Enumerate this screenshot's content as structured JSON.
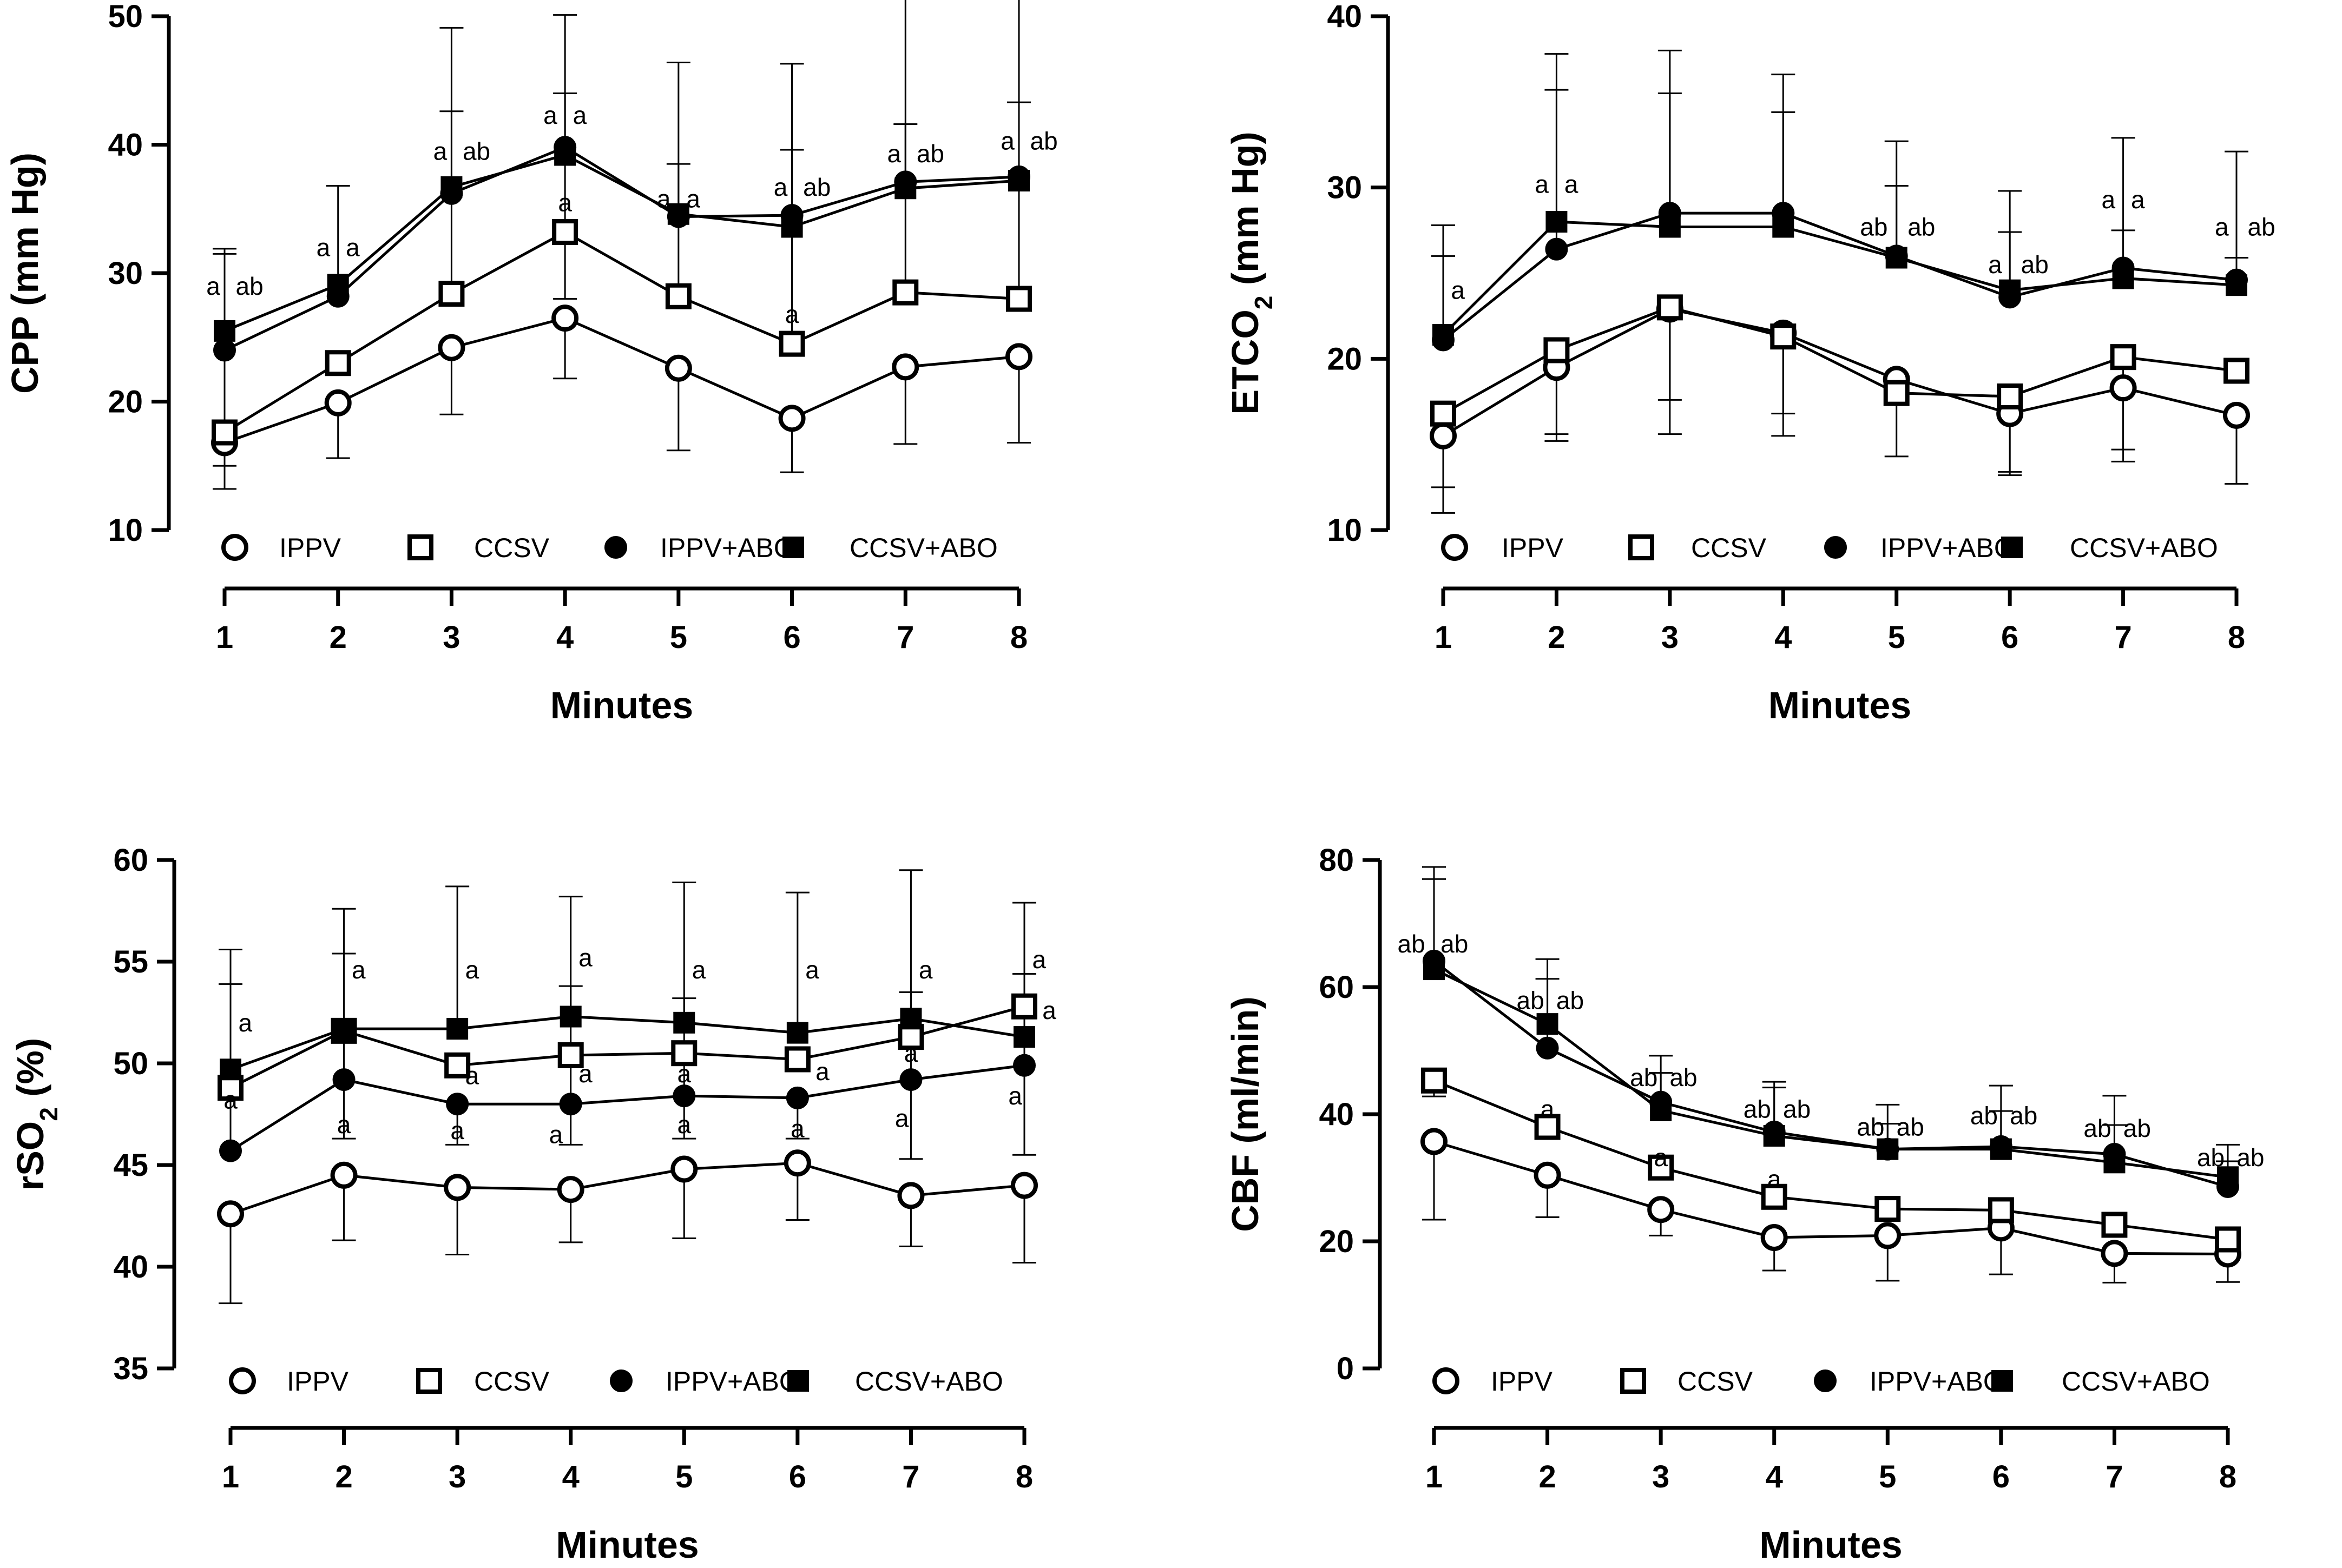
{
  "figure": {
    "colors": {
      "ink": "#000000",
      "background": "#ffffff"
    },
    "legend_symbols": {
      "IPPV": "open-circle-icon",
      "CCSV": "open-square-icon",
      "IPPV+ABO": "filled-circle-icon",
      "CCSV+ABO": "filled-square-icon"
    }
  },
  "chart_data": [
    {
      "id": "cpp",
      "type": "line",
      "ylabel": "CPP (mm Hg)",
      "xlabel": "Minutes",
      "ylim": [
        10,
        50
      ],
      "yticks": [
        10,
        20,
        30,
        40,
        50
      ],
      "x": [
        1,
        2,
        3,
        4,
        5,
        6,
        7,
        8
      ],
      "series": [
        {
          "name": "IPPV",
          "marker": "open-circle",
          "values": [
            16.8,
            19.9,
            24.2,
            26.5,
            22.6,
            18.7,
            22.7,
            23.5
          ],
          "err_low": [
            13.2,
            15.6,
            19.0,
            21.8,
            16.2,
            14.5,
            16.7,
            16.8
          ],
          "err_high": [
            null,
            null,
            null,
            null,
            null,
            null,
            null,
            null
          ]
        },
        {
          "name": "CCSV",
          "marker": "open-square",
          "values": [
            17.6,
            23.0,
            28.4,
            33.2,
            28.2,
            24.5,
            28.5,
            28.0
          ],
          "err_low": [
            15.0,
            null,
            null,
            28.0,
            null,
            null,
            null,
            null
          ],
          "err_high": [
            31.5,
            null,
            42.6,
            44.0,
            38.5,
            39.6,
            41.6,
            43.3
          ]
        },
        {
          "name": "IPPV+ABO",
          "marker": "filled-circle",
          "values": [
            24.0,
            28.2,
            36.2,
            39.8,
            34.4,
            34.5,
            37.1,
            37.5
          ],
          "err_low": [
            null,
            null,
            null,
            null,
            null,
            null,
            null,
            null
          ],
          "err_high": [
            31.9,
            36.8,
            49.1,
            50.1,
            46.4,
            46.3,
            52.9,
            51.7
          ]
        },
        {
          "name": "CCSV+ABO",
          "marker": "filled-square",
          "values": [
            25.5,
            29.1,
            36.7,
            39.2,
            34.6,
            33.6,
            36.6,
            37.2
          ],
          "err_low": [
            null,
            null,
            null,
            null,
            null,
            null,
            null,
            null
          ],
          "err_high": [
            null,
            null,
            null,
            null,
            null,
            null,
            null,
            null
          ]
        }
      ],
      "annotations": [
        {
          "x": 1,
          "y": 29.0,
          "text": "a",
          "dx": -0.1
        },
        {
          "x": 1,
          "y": 29.0,
          "text": "ab",
          "dx": 0.22
        },
        {
          "x": 2,
          "y": 32.0,
          "text": "a",
          "dx": -0.13
        },
        {
          "x": 2,
          "y": 32.0,
          "text": "a",
          "dx": 0.13
        },
        {
          "x": 3,
          "y": 39.5,
          "text": "a",
          "dx": -0.1
        },
        {
          "x": 3,
          "y": 39.5,
          "text": "ab",
          "dx": 0.22
        },
        {
          "x": 4,
          "y": 42.3,
          "text": "a",
          "dx": -0.13
        },
        {
          "x": 4,
          "y": 42.3,
          "text": "a",
          "dx": 0.13
        },
        {
          "x": 4,
          "y": 35.5,
          "text": "a",
          "dx": 0
        },
        {
          "x": 5,
          "y": 35.8,
          "text": "a",
          "dx": -0.13
        },
        {
          "x": 5,
          "y": 35.8,
          "text": "a",
          "dx": 0.13
        },
        {
          "x": 6,
          "y": 36.7,
          "text": "a",
          "dx": -0.1
        },
        {
          "x": 6,
          "y": 36.7,
          "text": "ab",
          "dx": 0.22
        },
        {
          "x": 6,
          "y": 26.8,
          "text": "a",
          "dx": 0
        },
        {
          "x": 7,
          "y": 39.3,
          "text": "a",
          "dx": -0.1
        },
        {
          "x": 7,
          "y": 39.3,
          "text": "ab",
          "dx": 0.22
        },
        {
          "x": 8,
          "y": 40.3,
          "text": "a",
          "dx": -0.1
        },
        {
          "x": 8,
          "y": 40.3,
          "text": "ab",
          "dx": 0.22
        }
      ]
    },
    {
      "id": "etco2",
      "type": "line",
      "ylabel": "ETCO",
      "ylabel_sub": "2",
      "ylabel_suffix": " (mm Hg)",
      "xlabel": "Minutes",
      "ylim": [
        10,
        40
      ],
      "yticks": [
        10,
        20,
        30,
        40
      ],
      "x": [
        1,
        2,
        3,
        4,
        5,
        6,
        7,
        8
      ],
      "series": [
        {
          "name": "IPPV",
          "marker": "open-circle",
          "values": [
            15.5,
            19.5,
            22.9,
            21.5,
            18.8,
            16.8,
            18.3,
            16.7
          ],
          "err_low": [
            11.0,
            15.2,
            15.6,
            15.5,
            14.3,
            13.4,
            14.7,
            12.7
          ],
          "err_high": [
            null,
            null,
            null,
            null,
            null,
            null,
            null,
            null
          ]
        },
        {
          "name": "CCSV",
          "marker": "open-square",
          "values": [
            16.8,
            20.5,
            23.0,
            21.3,
            18.0,
            17.8,
            20.1,
            19.3
          ],
          "err_low": [
            12.5,
            15.6,
            17.6,
            16.8,
            null,
            13.2,
            14.0,
            null
          ],
          "err_high": [
            null,
            null,
            null,
            null,
            null,
            null,
            null,
            null
          ]
        },
        {
          "name": "IPPV+ABO",
          "marker": "filled-circle",
          "values": [
            21.1,
            26.4,
            28.5,
            28.5,
            26.0,
            23.6,
            25.3,
            24.6
          ],
          "err_low": [
            null,
            null,
            null,
            null,
            null,
            null,
            null,
            null
          ],
          "err_high": [
            27.8,
            37.8,
            38.0,
            36.6,
            32.7,
            29.8,
            32.9,
            32.1
          ]
        },
        {
          "name": "CCSV+ABO",
          "marker": "filled-square",
          "values": [
            21.4,
            28.0,
            27.7,
            27.7,
            25.9,
            24.0,
            24.7,
            24.3
          ],
          "err_low": [
            null,
            null,
            null,
            null,
            null,
            null,
            null,
            null
          ],
          "err_high": [
            26.0,
            35.7,
            35.5,
            34.4,
            30.1,
            27.4,
            27.5,
            25.9
          ]
        }
      ],
      "annotations": [
        {
          "x": 1,
          "y": 24.0,
          "text": "a",
          "dx": 0.13
        },
        {
          "x": 2,
          "y": 30.2,
          "text": "a",
          "dx": -0.13
        },
        {
          "x": 2,
          "y": 30.2,
          "text": "a",
          "dx": 0.13
        },
        {
          "x": 5,
          "y": 27.7,
          "text": "ab",
          "dx": -0.2
        },
        {
          "x": 5,
          "y": 27.7,
          "text": "ab",
          "dx": 0.22
        },
        {
          "x": 6,
          "y": 25.5,
          "text": "a",
          "dx": -0.13
        },
        {
          "x": 6,
          "y": 25.5,
          "text": "ab",
          "dx": 0.22
        },
        {
          "x": 7,
          "y": 29.3,
          "text": "a",
          "dx": -0.13
        },
        {
          "x": 7,
          "y": 29.3,
          "text": "a",
          "dx": 0.13
        },
        {
          "x": 8,
          "y": 27.7,
          "text": "a",
          "dx": -0.13
        },
        {
          "x": 8,
          "y": 27.7,
          "text": "ab",
          "dx": 0.22
        }
      ]
    },
    {
      "id": "rso2",
      "type": "line",
      "ylabel": "rSO",
      "ylabel_sub": "2",
      "ylabel_suffix": " (%)",
      "xlabel": "Minutes",
      "ylim": [
        35,
        60
      ],
      "yticks": [
        35,
        40,
        45,
        50,
        55,
        60
      ],
      "x": [
        1,
        2,
        3,
        4,
        5,
        6,
        7,
        8
      ],
      "series": [
        {
          "name": "IPPV",
          "marker": "open-circle",
          "values": [
            42.6,
            44.5,
            43.9,
            43.8,
            44.8,
            45.1,
            43.5,
            44.0
          ],
          "err_low": [
            38.2,
            41.3,
            40.6,
            41.2,
            41.4,
            42.3,
            41.0,
            40.2
          ],
          "err_high": [
            null,
            null,
            null,
            null,
            null,
            null,
            null,
            null
          ]
        },
        {
          "name": "CCSV",
          "marker": "open-square",
          "values": [
            48.8,
            51.6,
            49.9,
            50.4,
            50.5,
            50.2,
            51.3,
            52.8
          ],
          "err_low": [
            null,
            null,
            null,
            null,
            null,
            null,
            null,
            null
          ],
          "err_high": [
            null,
            null,
            null,
            null,
            null,
            null,
            null,
            null
          ]
        },
        {
          "name": "IPPV+ABO",
          "marker": "filled-circle",
          "values": [
            45.7,
            49.2,
            48.0,
            48.0,
            48.4,
            48.3,
            49.2,
            49.9
          ],
          "err_low": [
            null,
            46.3,
            46.0,
            46.0,
            46.3,
            46.3,
            45.3,
            45.5
          ],
          "err_high": [
            53.9,
            55.4,
            null,
            53.8,
            53.2,
            null,
            53.5,
            54.4
          ]
        },
        {
          "name": "CCSV+ABO",
          "marker": "filled-square",
          "values": [
            49.7,
            51.7,
            51.7,
            52.3,
            52.0,
            51.5,
            52.2,
            51.3
          ],
          "err_low": [
            null,
            null,
            null,
            null,
            null,
            null,
            null,
            null
          ],
          "err_high": [
            55.6,
            57.6,
            58.7,
            58.2,
            58.9,
            58.4,
            59.5,
            57.9
          ]
        }
      ],
      "annotations": [
        {
          "x": 1,
          "y": 52.0,
          "text": "a",
          "dx": 0.13
        },
        {
          "x": 1,
          "y": 48.2,
          "text": "a",
          "dx": 0
        },
        {
          "x": 2,
          "y": 54.6,
          "text": "a",
          "dx": 0.13
        },
        {
          "x": 2,
          "y": 47.0,
          "text": "a",
          "dx": 0
        },
        {
          "x": 3,
          "y": 54.6,
          "text": "a",
          "dx": 0.13
        },
        {
          "x": 3,
          "y": 49.4,
          "text": "a",
          "dx": 0.13
        },
        {
          "x": 3,
          "y": 46.7,
          "text": "a",
          "dx": 0
        },
        {
          "x": 4,
          "y": 55.2,
          "text": "a",
          "dx": 0.13
        },
        {
          "x": 4,
          "y": 49.5,
          "text": "a",
          "dx": 0.13
        },
        {
          "x": 4,
          "y": 46.5,
          "text": "a",
          "dx": -0.13
        },
        {
          "x": 5,
          "y": 54.6,
          "text": "a",
          "dx": 0.13
        },
        {
          "x": 5,
          "y": 49.5,
          "text": "a",
          "dx": 0
        },
        {
          "x": 5,
          "y": 47.0,
          "text": "a",
          "dx": 0
        },
        {
          "x": 6,
          "y": 54.6,
          "text": "a",
          "dx": 0.13
        },
        {
          "x": 6,
          "y": 49.6,
          "text": "a",
          "dx": 0.22
        },
        {
          "x": 6,
          "y": 46.8,
          "text": "a",
          "dx": 0
        },
        {
          "x": 7,
          "y": 54.6,
          "text": "a",
          "dx": 0.13
        },
        {
          "x": 7,
          "y": 50.5,
          "text": "a",
          "dx": 0
        },
        {
          "x": 7,
          "y": 47.3,
          "text": "a",
          "dx": -0.08
        },
        {
          "x": 8,
          "y": 55.1,
          "text": "a",
          "dx": 0.13
        },
        {
          "x": 8,
          "y": 52.6,
          "text": "a",
          "dx": 0.22
        },
        {
          "x": 8,
          "y": 48.4,
          "text": "a",
          "dx": -0.08
        }
      ]
    },
    {
      "id": "cbf",
      "type": "line",
      "ylabel": "CBF (ml/min)",
      "xlabel": "Minutes",
      "ylim": [
        0,
        80
      ],
      "yticks": [
        0,
        20,
        40,
        60,
        80
      ],
      "x": [
        1,
        2,
        3,
        4,
        5,
        6,
        7,
        8
      ],
      "series": [
        {
          "name": "IPPV",
          "marker": "open-circle",
          "values": [
            35.7,
            30.4,
            25.0,
            20.6,
            20.9,
            22.1,
            18.1,
            18.0
          ],
          "err_low": [
            23.4,
            23.8,
            20.9,
            15.4,
            13.8,
            14.8,
            13.5,
            13.6
          ],
          "err_high": [
            null,
            null,
            null,
            null,
            null,
            null,
            null,
            null
          ]
        },
        {
          "name": "CCSV",
          "marker": "open-square",
          "values": [
            45.3,
            38.0,
            31.6,
            27.0,
            25.1,
            24.9,
            22.6,
            20.3
          ],
          "err_low": [
            42.8,
            null,
            null,
            null,
            null,
            null,
            null,
            null
          ],
          "err_high": [
            null,
            null,
            null,
            null,
            null,
            null,
            null,
            null
          ]
        },
        {
          "name": "IPPV+ABO",
          "marker": "filled-circle",
          "values": [
            64.1,
            50.4,
            41.9,
            37.2,
            34.5,
            34.9,
            33.7,
            28.6
          ],
          "err_low": [
            null,
            null,
            null,
            null,
            null,
            null,
            null,
            null
          ],
          "err_high": [
            78.9,
            64.4,
            49.2,
            45.1,
            41.5,
            44.5,
            42.9,
            35.2
          ]
        },
        {
          "name": "CCSV+ABO",
          "marker": "filled-square",
          "values": [
            62.8,
            54.2,
            40.6,
            36.6,
            34.5,
            34.5,
            32.4,
            30.1
          ],
          "err_low": [
            null,
            null,
            null,
            null,
            null,
            null,
            null,
            null
          ],
          "err_high": [
            77.0,
            61.3,
            46.5,
            44.2,
            38.5,
            40.5,
            38.3,
            32.6
          ]
        }
      ],
      "annotations": [
        {
          "x": 1,
          "y": 66.8,
          "text": "ab",
          "dx": -0.2
        },
        {
          "x": 1,
          "y": 66.8,
          "text": "ab",
          "dx": 0.18
        },
        {
          "x": 2,
          "y": 57.9,
          "text": "ab",
          "dx": -0.15
        },
        {
          "x": 2,
          "y": 57.9,
          "text": "ab",
          "dx": 0.2
        },
        {
          "x": 2,
          "y": 40.8,
          "text": "a",
          "dx": 0
        },
        {
          "x": 3,
          "y": 45.8,
          "text": "ab",
          "dx": -0.15
        },
        {
          "x": 3,
          "y": 45.8,
          "text": "ab",
          "dx": 0.2
        },
        {
          "x": 3,
          "y": 33.2,
          "text": "a",
          "dx": 0
        },
        {
          "x": 4,
          "y": 40.8,
          "text": "ab",
          "dx": -0.15
        },
        {
          "x": 4,
          "y": 40.8,
          "text": "ab",
          "dx": 0.2
        },
        {
          "x": 4,
          "y": 29.8,
          "text": "a",
          "dx": 0
        },
        {
          "x": 5,
          "y": 38.0,
          "text": "ab",
          "dx": -0.15
        },
        {
          "x": 5,
          "y": 38.0,
          "text": "ab",
          "dx": 0.2
        },
        {
          "x": 6,
          "y": 39.8,
          "text": "ab",
          "dx": -0.15
        },
        {
          "x": 6,
          "y": 39.8,
          "text": "ab",
          "dx": 0.2
        },
        {
          "x": 7,
          "y": 37.8,
          "text": "ab",
          "dx": -0.15
        },
        {
          "x": 7,
          "y": 37.8,
          "text": "ab",
          "dx": 0.2
        },
        {
          "x": 8,
          "y": 33.2,
          "text": "ab",
          "dx": -0.15
        },
        {
          "x": 8,
          "y": 33.2,
          "text": "ab",
          "dx": 0.2
        }
      ]
    }
  ]
}
